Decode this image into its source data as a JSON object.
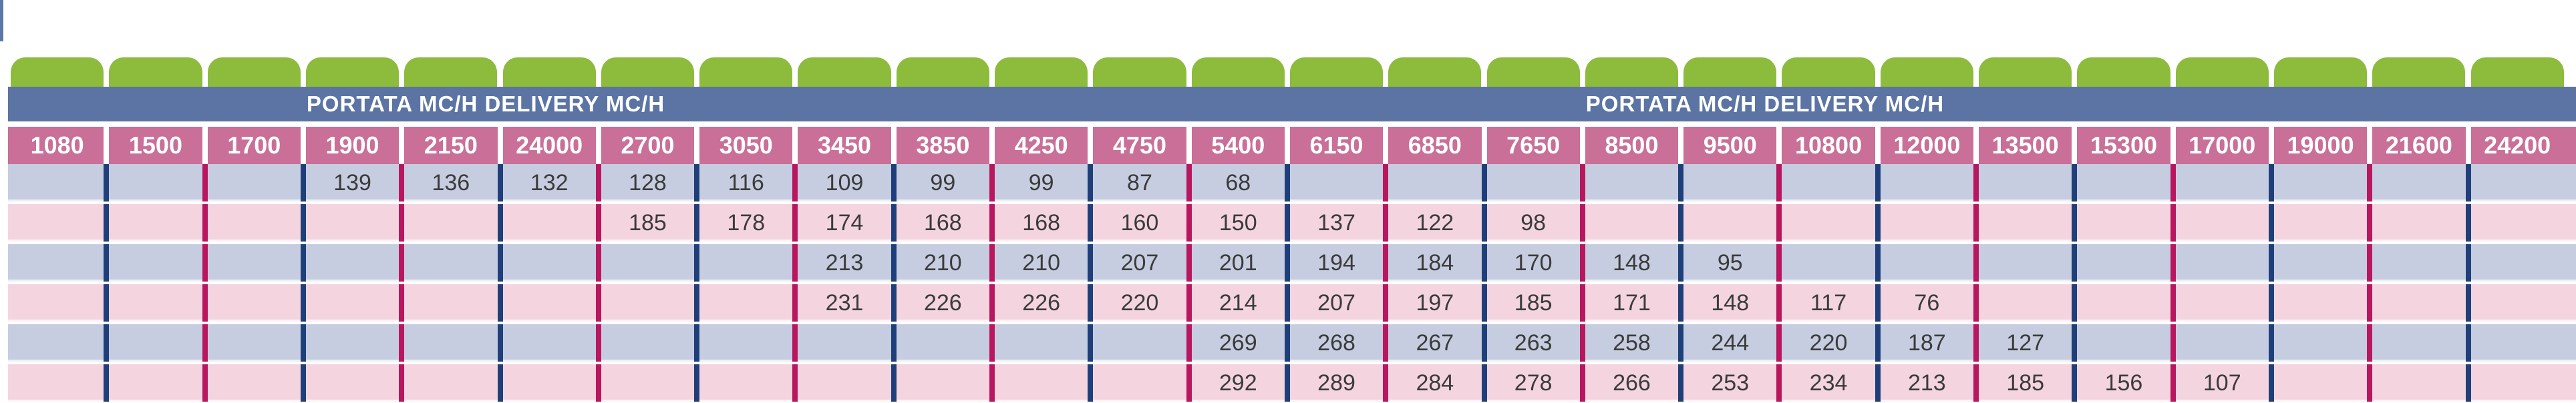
{
  "band_titles": [
    "PORTATA MC/H DELIVERY MC/H",
    "PORTATA MC/H DELIVERY MC/H"
  ],
  "columns": [
    "1080",
    "1500",
    "1700",
    "1900",
    "2150",
    "24000",
    "2700",
    "3050",
    "3450",
    "3850",
    "4250",
    "4750",
    "5400",
    "6150",
    "6850",
    "7650",
    "8500",
    "9500",
    "10800",
    "12000",
    "13500",
    "15300",
    "17000",
    "19000",
    "21600",
    "24200"
  ],
  "rows": [
    [
      "",
      "",
      "",
      "139",
      "136",
      "132",
      "128",
      "116",
      "109",
      "99",
      "99",
      "87",
      "68",
      "",
      "",
      "",
      "",
      "",
      "",
      "",
      "",
      "",
      "",
      "",
      "",
      ""
    ],
    [
      "",
      "",
      "",
      "",
      "",
      "",
      "185",
      "178",
      "174",
      "168",
      "168",
      "160",
      "150",
      "137",
      "122",
      "98",
      "",
      "",
      "",
      "",
      "",
      "",
      "",
      "",
      "",
      ""
    ],
    [
      "",
      "",
      "",
      "",
      "",
      "",
      "",
      "",
      "213",
      "210",
      "210",
      "207",
      "201",
      "194",
      "184",
      "170",
      "148",
      "95",
      "",
      "",
      "",
      "",
      "",
      "",
      "",
      ""
    ],
    [
      "",
      "",
      "",
      "",
      "",
      "",
      "",
      "",
      "231",
      "226",
      "226",
      "220",
      "214",
      "207",
      "197",
      "185",
      "171",
      "148",
      "117",
      "76",
      "",
      "",
      "",
      "",
      "",
      ""
    ],
    [
      "",
      "",
      "",
      "",
      "",
      "",
      "",
      "",
      "",
      "",
      "",
      "",
      "269",
      "268",
      "267",
      "263",
      "258",
      "244",
      "220",
      "187",
      "127",
      "",
      "",
      "",
      "",
      ""
    ],
    [
      "",
      "",
      "",
      "",
      "",
      "",
      "",
      "",
      "",
      "",
      "",
      "",
      "292",
      "289",
      "284",
      "278",
      "266",
      "253",
      "234",
      "213",
      "185",
      "156",
      "107",
      "",
      "",
      ""
    ]
  ],
  "colors": {
    "tab_green": "#8dbb3c",
    "band_blue": "#5b74a3",
    "header_pink": "#c96f98",
    "row_blue": "#c7cde0",
    "row_pink": "#f4d5df",
    "divider_blue": "#1f3f7a",
    "divider_magenta": "#b8175f"
  }
}
